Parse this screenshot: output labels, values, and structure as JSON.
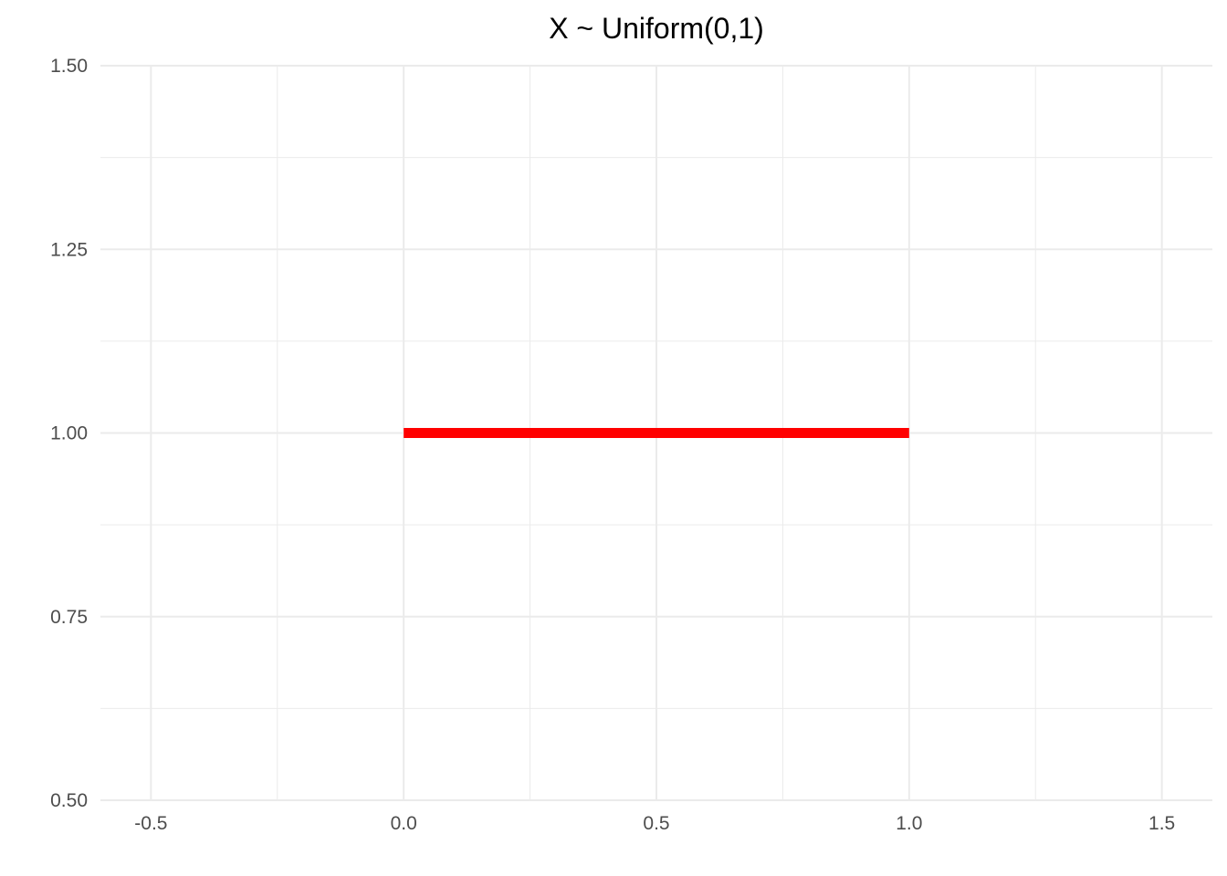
{
  "chart_data": {
    "type": "line",
    "title": "X ~ Uniform(0,1)",
    "xlabel": "",
    "ylabel": "",
    "xlim": [
      -0.6,
      1.6
    ],
    "ylim": [
      0.5,
      1.5
    ],
    "x_ticks": [
      -0.5,
      0.0,
      0.5,
      1.0,
      1.5
    ],
    "x_tick_labels": [
      "-0.5",
      "0.0",
      "0.5",
      "1.0",
      "1.5"
    ],
    "x_minor_ticks": [
      -0.25,
      0.25,
      0.75,
      1.25
    ],
    "y_ticks": [
      0.5,
      0.75,
      1.0,
      1.25,
      1.5
    ],
    "y_tick_labels": [
      "0.50",
      "0.75",
      "1.00",
      "1.25",
      "1.50"
    ],
    "y_minor_ticks": [
      0.625,
      0.875,
      1.125,
      1.375
    ],
    "grid": true,
    "legend": "none",
    "series": [
      {
        "color": "#ff0000",
        "x": [
          0,
          1
        ],
        "y": [
          1,
          1
        ]
      }
    ]
  }
}
